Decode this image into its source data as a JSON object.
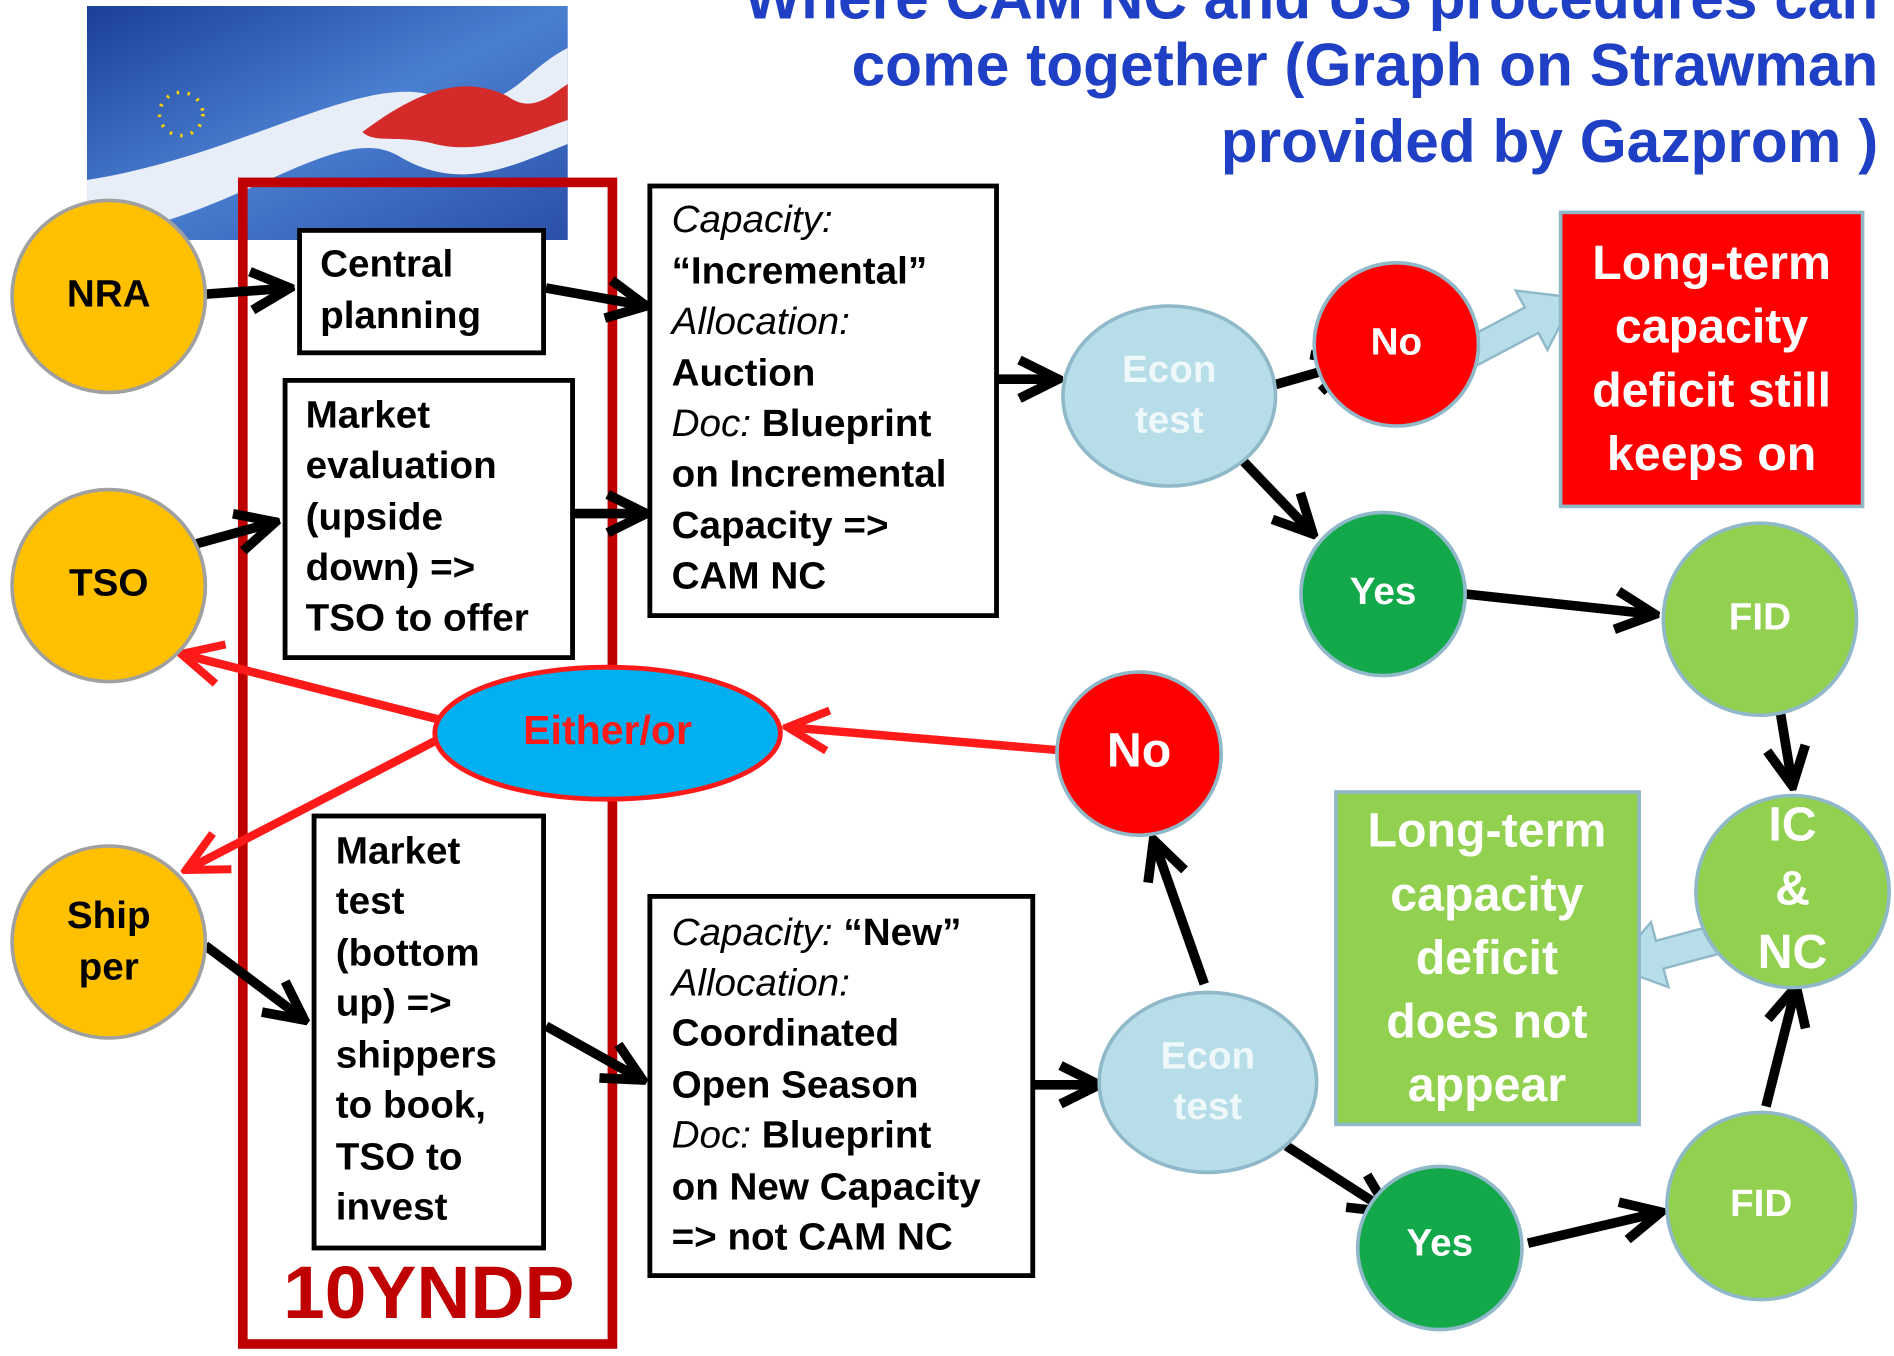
{
  "header": {
    "title": [
      "Where CAM NC and US procedures can",
      "come together (Graph on Strawman",
      "provided by Gazprom )"
    ]
  },
  "frame": {
    "label": "10YNDP"
  },
  "actors": [
    {
      "lines": [
        "NRA"
      ]
    },
    {
      "lines": [
        "TSO"
      ]
    },
    {
      "lines": [
        "Ship",
        "per"
      ]
    }
  ],
  "process_boxes": [
    {
      "lines": [
        "Central",
        "planning"
      ]
    },
    {
      "lines": [
        "Market",
        "evaluation",
        "(upside",
        "down) =>",
        "TSO to offer"
      ]
    },
    {
      "lines": [
        "Market",
        "test",
        "(bottom",
        "up) =>",
        "shippers",
        "to book,",
        "TSO to",
        "invest"
      ]
    }
  ],
  "regime_boxes": [
    {
      "lines": [
        [
          "Capacity:"
        ],
        [
          "“Incremental”"
        ],
        [
          "Allocation:"
        ],
        [
          "Auction"
        ],
        [
          "Doc:",
          " Blueprint"
        ],
        [
          "on Incremental"
        ],
        [
          "Capacity =>"
        ],
        [
          "CAM NC"
        ]
      ]
    },
    {
      "lines": [
        [
          "Capacity:",
          " “New”"
        ],
        [
          "Allocation:"
        ],
        [
          "Coordinated"
        ],
        [
          "Open Season"
        ],
        [
          "Doc:",
          " Blueprint"
        ],
        [
          "on New Capacity"
        ],
        [
          "=> not CAM NC"
        ]
      ]
    }
  ],
  "decision": "Either/or",
  "nodes": {
    "econ_test_top": [
      "Econ",
      "test"
    ],
    "no_top": "No",
    "yes_top": "Yes",
    "fid_top": "FID",
    "ic_nc": [
      "IC",
      "&",
      "NC"
    ],
    "econ_test_bottom": [
      "Econ",
      "test"
    ],
    "no_bottom": "No",
    "yes_bottom": "Yes",
    "fid_bottom": "FID"
  },
  "outcomes": {
    "deficit_keeps": [
      "Long-term",
      "capacity",
      "deficit still",
      "keeps on"
    ],
    "deficit_absent": [
      "Long-term",
      "capacity",
      "deficit",
      "does not",
      "appear"
    ]
  }
}
